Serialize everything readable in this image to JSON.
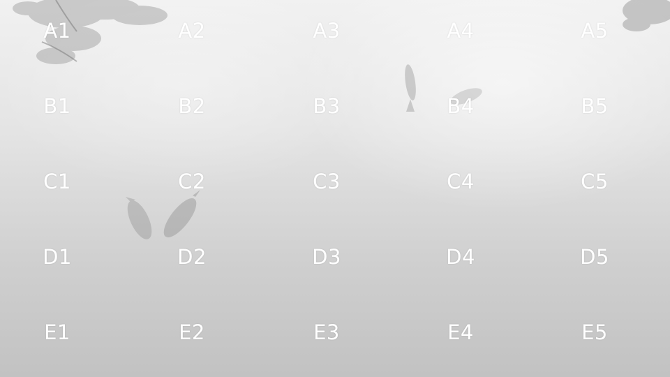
{
  "grid": {
    "rows": [
      [
        "A1",
        "A2",
        "A3",
        "A4",
        "A5"
      ],
      [
        "B1",
        "B2",
        "B3",
        "B4",
        "B5"
      ],
      [
        "C1",
        "C2",
        "C3",
        "C4",
        "C5"
      ],
      [
        "D1",
        "D2",
        "D3",
        "D4",
        "D5"
      ],
      [
        "E1",
        "E2",
        "E3",
        "E4",
        "E5"
      ]
    ]
  },
  "colors": {
    "label": "#ffffff",
    "fish": "#8e8e8e",
    "foliage": "#9a9a9a"
  }
}
